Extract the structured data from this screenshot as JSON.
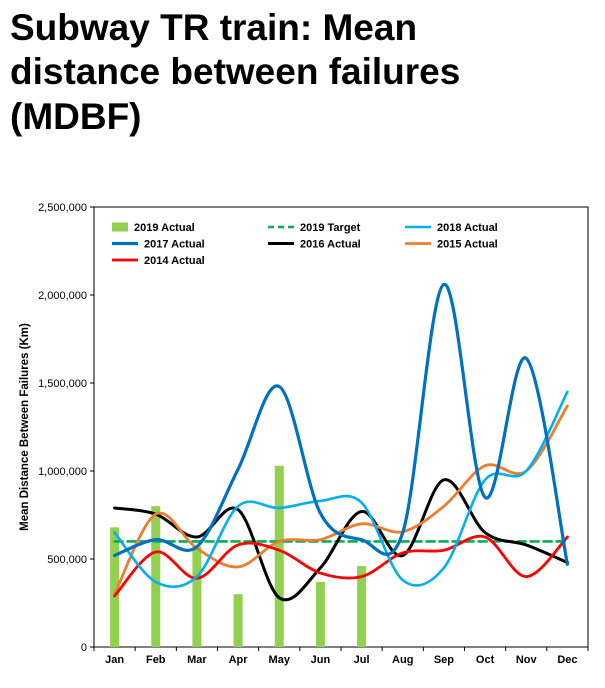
{
  "page": {
    "title": "Subway TR train: Mean distance between failures (MDBF)",
    "title_lines": [
      "Subway TR train: Mean",
      "distance between failures",
      "(MDBF)"
    ]
  },
  "chart_data": {
    "type": "combo-bar-line",
    "title": "",
    "xlabel": "",
    "ylabel": "Mean Distance Between Failures (Km)",
    "ylim": [
      0,
      2500000
    ],
    "ytick_step": 500000,
    "ytick_labels": [
      "0",
      "500,000",
      "1,000,000",
      "1,500,000",
      "2,000,000",
      "2,500,000"
    ],
    "categories": [
      "Jan",
      "Feb",
      "Mar",
      "Apr",
      "May",
      "Jun",
      "Jul",
      "Aug",
      "Sep",
      "Oct",
      "Nov",
      "Dec"
    ],
    "grid": false,
    "legend_position": "top-inside",
    "series": [
      {
        "name": "2019 Actual",
        "kind": "bar",
        "color": "#92D050",
        "z": 0,
        "stroke_width": 0,
        "values": [
          680000,
          800000,
          570000,
          300000,
          1030000,
          370000,
          460000,
          null,
          null,
          null,
          null,
          null
        ]
      },
      {
        "name": "2019 Target",
        "kind": "dashed-line",
        "color": "#00B050",
        "z": 1,
        "stroke_width": 2.6,
        "values": [
          600000,
          600000,
          600000,
          600000,
          600000,
          600000,
          600000,
          600000,
          600000,
          600000,
          600000,
          600000
        ]
      },
      {
        "name": "2018 Actual",
        "kind": "line",
        "color": "#00B0F0",
        "z": 5,
        "stroke_width": 2.6,
        "values": [
          650000,
          370000,
          400000,
          800000,
          790000,
          830000,
          820000,
          380000,
          450000,
          950000,
          1000000,
          1450000
        ]
      },
      {
        "name": "2017 Actual",
        "kind": "line",
        "color": "#0070C0",
        "z": 6,
        "stroke_width": 3.2,
        "values": [
          520000,
          610000,
          570000,
          1010000,
          1480000,
          760000,
          610000,
          650000,
          2060000,
          850000,
          1640000,
          470000
        ]
      },
      {
        "name": "2016 Actual",
        "kind": "line",
        "color": "#000000",
        "z": 2,
        "stroke_width": 3.0,
        "values": [
          790000,
          755000,
          625000,
          780000,
          280000,
          450000,
          770000,
          520000,
          950000,
          650000,
          580000,
          480000
        ]
      },
      {
        "name": "2015 Actual",
        "kind": "line",
        "color": "#ED7D31",
        "z": 3,
        "stroke_width": 2.8,
        "values": [
          300000,
          755000,
          560000,
          455000,
          600000,
          610000,
          700000,
          655000,
          800000,
          1030000,
          1000000,
          1370000
        ]
      },
      {
        "name": "2014 Actual",
        "kind": "line",
        "color": "#FF0000",
        "z": 4,
        "stroke_width": 2.8,
        "values": [
          290000,
          540000,
          390000,
          580000,
          550000,
          420000,
          400000,
          535000,
          550000,
          625000,
          400000,
          625000
        ]
      }
    ]
  }
}
